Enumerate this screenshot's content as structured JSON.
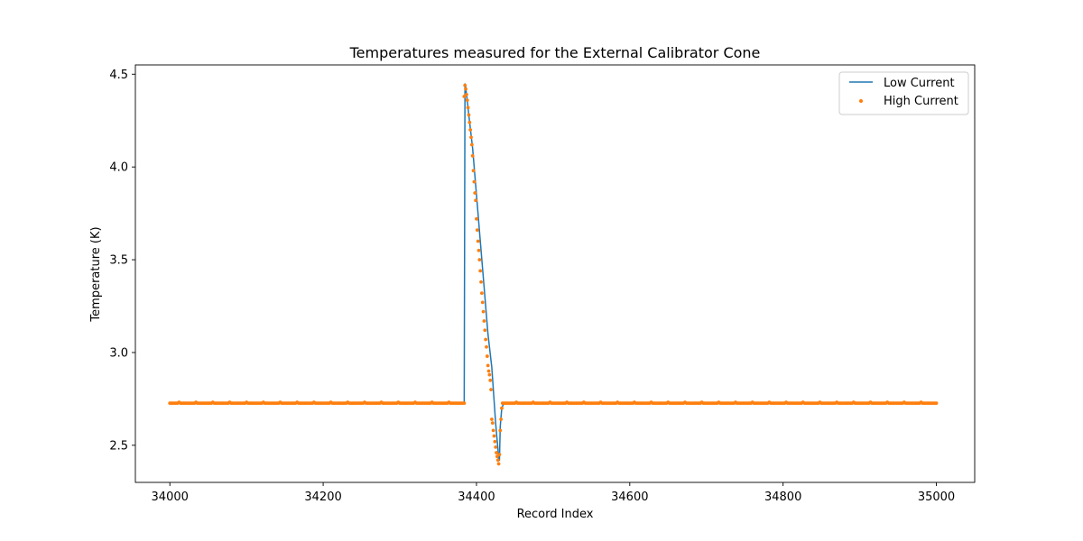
{
  "chart_data": {
    "type": "line",
    "title": "Temperatures measured for the External Calibrator Cone",
    "xlabel": "Record Index",
    "ylabel": "Temperature (K)",
    "xlim": [
      33955,
      35050
    ],
    "ylim": [
      2.3,
      4.55
    ],
    "xticks": [
      34000,
      34200,
      34400,
      34600,
      34800,
      35000
    ],
    "yticks": [
      2.5,
      3.0,
      3.5,
      4.0,
      4.5
    ],
    "ytick_labels": [
      "2.5",
      "3.0",
      "3.5",
      "4.0",
      "4.5"
    ],
    "grid": false,
    "legend_position": "top-right",
    "series": [
      {
        "name": "Low Current",
        "style": "line",
        "color": "#1f77b4",
        "x": [
          34000,
          34100,
          34200,
          34300,
          34384,
          34385,
          34386,
          34390,
          34395,
          34400,
          34405,
          34410,
          34415,
          34420,
          34425,
          34428,
          34429,
          34430,
          34431,
          34433,
          34435,
          34440,
          34500,
          34600,
          34700,
          34800,
          34900,
          35000
        ],
        "y": [
          2.725,
          2.725,
          2.725,
          2.725,
          2.725,
          4.45,
          4.43,
          4.28,
          4.1,
          3.85,
          3.6,
          3.35,
          3.1,
          2.92,
          2.62,
          2.48,
          2.42,
          2.42,
          2.6,
          2.7,
          2.72,
          2.725,
          2.725,
          2.725,
          2.725,
          2.725,
          2.725,
          2.725
        ]
      },
      {
        "name": "High Current",
        "style": "scatter",
        "color": "#ff7f0e",
        "baseline": 2.727,
        "baseline_ranges": [
          [
            34000,
            34384
          ],
          [
            34434,
            35000
          ]
        ],
        "anomaly_x": [
          34384,
          34385,
          34386,
          34387,
          34388,
          34389,
          34390,
          34391,
          34392,
          34393,
          34394,
          34395,
          34396,
          34397,
          34398,
          34399,
          34400,
          34401,
          34402,
          34403,
          34404,
          34405,
          34406,
          34407,
          34408,
          34409,
          34410,
          34411,
          34412,
          34413,
          34414,
          34415,
          34416,
          34417,
          34418,
          34419,
          34420,
          34421,
          34422,
          34423,
          34424,
          34425,
          34426,
          34427,
          34428,
          34429,
          34430,
          34431,
          34432,
          34433
        ],
        "anomaly_y": [
          4.38,
          4.44,
          4.42,
          4.39,
          4.36,
          4.32,
          4.28,
          4.24,
          4.2,
          4.16,
          4.12,
          4.06,
          3.98,
          3.92,
          3.86,
          3.82,
          3.72,
          3.66,
          3.6,
          3.55,
          3.5,
          3.44,
          3.38,
          3.32,
          3.27,
          3.22,
          3.17,
          3.12,
          3.07,
          3.03,
          2.98,
          2.93,
          2.9,
          2.88,
          2.85,
          2.8,
          2.64,
          2.62,
          2.58,
          2.55,
          2.52,
          2.49,
          2.46,
          2.44,
          2.42,
          2.4,
          2.45,
          2.58,
          2.64,
          2.7
        ]
      }
    ]
  }
}
